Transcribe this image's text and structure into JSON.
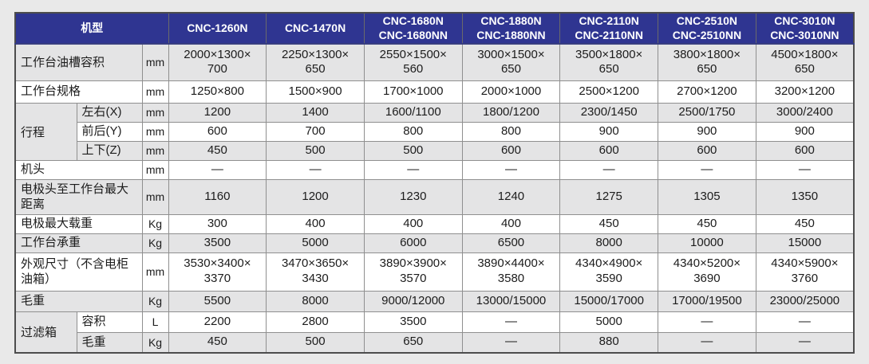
{
  "page": {
    "background_color": "#e9e9e9",
    "header_bg_color": "#2f3591",
    "header_text_color": "#ffffff",
    "row_alt_bg_color": "#e4e4e5",
    "row_bg_color": "#ffffff",
    "grid_border_color": "#8f8f8f",
    "outer_border_color": "#4d4d4d"
  },
  "table": {
    "corner_label": "机型",
    "models": [
      "CNC-1260N",
      "CNC-1470N",
      "CNC-1680N\nCNC-1680NN",
      "CNC-1880N\nCNC-1880NN",
      "CNC-2110N\nCNC-2110NN",
      "CNC-2510N\nCNC-2510NN",
      "CNC-3010N\nCNC-3010NN"
    ],
    "groups": {
      "stroke": "行程",
      "filter_box": "过滤箱"
    },
    "rows": [
      {
        "label": "工作台油槽容积",
        "unit": "mm",
        "values": [
          "2000×1300×\n700",
          "2250×1300×\n650",
          "2550×1500×\n560",
          "3000×1500×\n650",
          "3500×1800×\n650",
          "3800×1800×\n650",
          "4500×1800×\n650"
        ]
      },
      {
        "label": "工作台规格",
        "unit": "mm",
        "values": [
          "1250×800",
          "1500×900",
          "1700×1000",
          "2000×1000",
          "2500×1200",
          "2700×1200",
          "3200×1200"
        ]
      },
      {
        "label": "左右(X)",
        "unit": "mm",
        "values": [
          "1200",
          "1400",
          "1600/1100",
          "1800/1200",
          "2300/1450",
          "2500/1750",
          "3000/2400"
        ]
      },
      {
        "label": "前后(Y)",
        "unit": "mm",
        "values": [
          "600",
          "700",
          "800",
          "800",
          "900",
          "900",
          "900"
        ]
      },
      {
        "label": "上下(Z)",
        "unit": "mm",
        "values": [
          "450",
          "500",
          "500",
          "600",
          "600",
          "600",
          "600"
        ]
      },
      {
        "label": "机头",
        "unit": "mm",
        "values": [
          "—",
          "—",
          "—",
          "—",
          "—",
          "—",
          "—"
        ]
      },
      {
        "label": "电极头至工作台最大距离",
        "unit": "mm",
        "values": [
          "1160",
          "1200",
          "1230",
          "1240",
          "1275",
          "1305",
          "1350"
        ]
      },
      {
        "label": "电极最大载重",
        "unit": "Kg",
        "values": [
          "300",
          "400",
          "400",
          "400",
          "450",
          "450",
          "450"
        ]
      },
      {
        "label": "工作台承重",
        "unit": "Kg",
        "values": [
          "3500",
          "5000",
          "6000",
          "6500",
          "8000",
          "10000",
          "15000"
        ]
      },
      {
        "label": "外观尺寸（不含电柜油箱）",
        "unit": "mm",
        "values": [
          "3530×3400×\n3370",
          "3470×3650×\n3430",
          "3890×3900×\n3570",
          "3890×4400×\n3580",
          "4340×4900×\n3590",
          "4340×5200×\n3690",
          "4340×5900×\n3760"
        ]
      },
      {
        "label": "毛重",
        "unit": "Kg",
        "values": [
          "5500",
          "8000",
          "9000/12000",
          "13000/15000",
          "15000/17000",
          "17000/19500",
          "23000/25000"
        ]
      },
      {
        "label": "容积",
        "unit": "L",
        "values": [
          "2200",
          "2800",
          "3500",
          "—",
          "5000",
          "—",
          "—"
        ]
      },
      {
        "label": "毛重",
        "unit": "Kg",
        "values": [
          "450",
          "500",
          "650",
          "—",
          "880",
          "—",
          "—"
        ]
      }
    ]
  }
}
